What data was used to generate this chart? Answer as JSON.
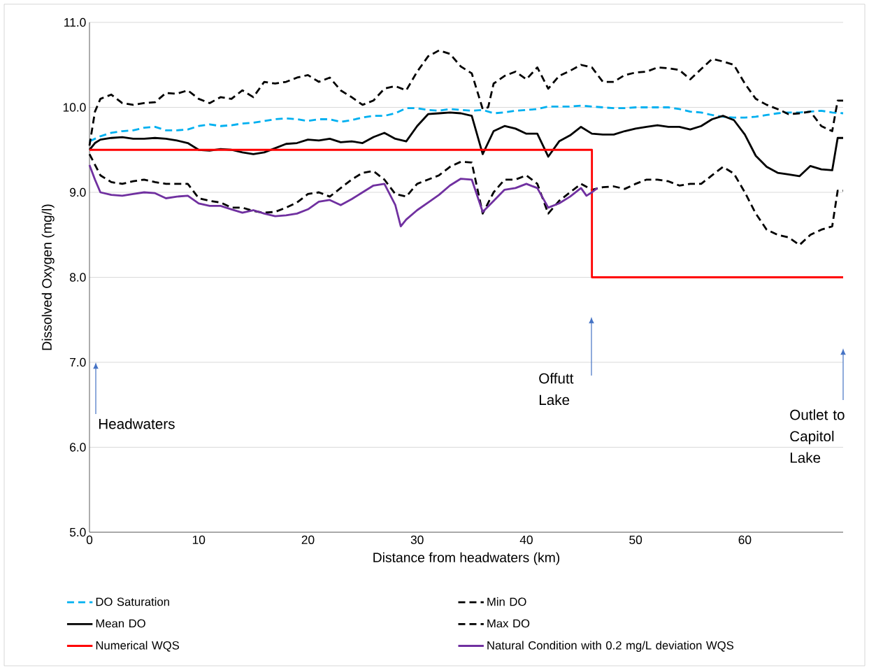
{
  "chart_data": {
    "type": "line",
    "xlabel": "Distance from headwaters (km)",
    "ylabel": "Dissolved Oxygen (mg/l)",
    "xlim": [
      0,
      69
    ],
    "ylim": [
      5,
      11
    ],
    "xticks": [
      0,
      10,
      20,
      30,
      40,
      50,
      60
    ],
    "yticks": [
      {
        "value": 5,
        "label": "5.0"
      },
      {
        "value": 6,
        "label": "6.0"
      },
      {
        "value": 7,
        "label": "7.0"
      },
      {
        "value": 8,
        "label": "8.0"
      },
      {
        "value": 9,
        "label": "9.0"
      },
      {
        "value": 10,
        "label": "10.0"
      },
      {
        "value": 11,
        "label": "11.0"
      }
    ],
    "grid": "y",
    "legend": "bottom",
    "marker": "none",
    "annotations": [
      "Headwaters",
      "Offutt Lake",
      "Outlet to Capitol Lake"
    ],
    "series": [
      {
        "name": "DO Saturation",
        "color": "#00b0f0",
        "line_style": "dashed",
        "x": [
          0,
          1,
          2,
          3,
          4,
          5,
          6,
          7,
          8,
          9,
          10,
          11,
          12,
          13,
          14,
          15,
          16,
          17,
          18,
          19,
          20,
          21,
          22,
          23,
          24,
          25,
          26,
          27,
          28,
          29,
          30,
          31,
          32,
          33,
          34,
          35,
          36,
          37,
          38,
          39,
          40,
          41,
          42,
          43,
          44,
          45,
          46,
          47,
          48,
          49,
          50,
          51,
          52,
          53,
          54,
          55,
          56,
          57,
          58,
          59,
          60,
          61,
          62,
          63,
          64,
          65,
          66,
          67,
          68,
          69
        ],
        "values": [
          9.6,
          9.66,
          9.7,
          9.72,
          9.73,
          9.76,
          9.77,
          9.73,
          9.73,
          9.74,
          9.78,
          9.8,
          9.78,
          9.79,
          9.81,
          9.82,
          9.84,
          9.86,
          9.87,
          9.86,
          9.84,
          9.86,
          9.86,
          9.83,
          9.85,
          9.88,
          9.9,
          9.9,
          9.93,
          9.99,
          9.99,
          9.97,
          9.96,
          9.98,
          9.97,
          9.96,
          9.97,
          9.93,
          9.94,
          9.96,
          9.97,
          9.98,
          10.01,
          10.01,
          10.01,
          10.02,
          10.01,
          10.0,
          9.99,
          9.99,
          10.0,
          10.0,
          10.0,
          10.0,
          9.98,
          9.95,
          9.94,
          9.91,
          9.89,
          9.88,
          9.88,
          9.89,
          9.91,
          9.93,
          9.94,
          9.94,
          9.95,
          9.96,
          9.94,
          9.93
        ]
      },
      {
        "name": "Min DO",
        "color": "#000000",
        "line_style": "dashed",
        "x": [
          0,
          1,
          2,
          3,
          4,
          5,
          6,
          7,
          8,
          9,
          10,
          11,
          12,
          13,
          14,
          15,
          16,
          17,
          18,
          19,
          20,
          21,
          22,
          23,
          24,
          25,
          26,
          27,
          28,
          29,
          30,
          31,
          32,
          33,
          34,
          35,
          36,
          37,
          38,
          39,
          40,
          41,
          42,
          43,
          44,
          45,
          46,
          47,
          48,
          49,
          50,
          51,
          52,
          53,
          54,
          55,
          56,
          57,
          58,
          59,
          60,
          61,
          62,
          63,
          64,
          65,
          66,
          67,
          68,
          68.5,
          69
        ],
        "values": [
          9.45,
          9.2,
          9.12,
          9.1,
          9.13,
          9.15,
          9.12,
          9.1,
          9.1,
          9.1,
          8.93,
          8.9,
          8.88,
          8.82,
          8.82,
          8.78,
          8.76,
          8.77,
          8.82,
          8.88,
          8.98,
          9.0,
          8.95,
          9.05,
          9.15,
          9.23,
          9.25,
          9.15,
          8.98,
          8.95,
          9.1,
          9.15,
          9.2,
          9.3,
          9.36,
          9.35,
          8.75,
          9.0,
          9.15,
          9.15,
          9.2,
          9.1,
          8.75,
          8.9,
          9.0,
          9.1,
          9.03,
          9.06,
          9.07,
          9.04,
          9.1,
          9.15,
          9.15,
          9.13,
          9.08,
          9.1,
          9.1,
          9.2,
          9.3,
          9.22,
          9.0,
          8.75,
          8.56,
          8.5,
          8.47,
          8.38,
          8.5,
          8.56,
          8.6,
          9.02,
          9.02
        ]
      },
      {
        "name": "Mean DO",
        "color": "#000000",
        "line_style": "solid",
        "x": [
          0,
          0.5,
          1,
          2,
          3,
          4,
          5,
          6,
          7,
          8,
          9,
          10,
          11,
          12,
          13,
          14,
          15,
          16,
          17,
          18,
          19,
          20,
          21,
          22,
          23,
          24,
          25,
          26,
          27,
          28,
          29,
          30,
          31,
          32,
          33,
          34,
          35,
          36,
          37,
          38,
          39,
          40,
          41,
          42,
          43,
          44,
          45,
          46,
          47,
          48,
          49,
          50,
          51,
          52,
          53,
          54,
          55,
          56,
          57,
          58,
          59,
          60,
          61,
          62,
          63,
          64,
          65,
          66,
          67,
          68,
          68.5,
          69
        ],
        "values": [
          9.5,
          9.58,
          9.62,
          9.64,
          9.65,
          9.63,
          9.63,
          9.64,
          9.63,
          9.61,
          9.58,
          9.5,
          9.49,
          9.51,
          9.5,
          9.47,
          9.45,
          9.47,
          9.52,
          9.57,
          9.58,
          9.62,
          9.61,
          9.63,
          9.59,
          9.6,
          9.58,
          9.65,
          9.7,
          9.63,
          9.6,
          9.78,
          9.92,
          9.93,
          9.94,
          9.93,
          9.9,
          9.45,
          9.72,
          9.78,
          9.75,
          9.69,
          9.69,
          9.42,
          9.6,
          9.67,
          9.77,
          9.69,
          9.68,
          9.68,
          9.72,
          9.75,
          9.77,
          9.79,
          9.77,
          9.77,
          9.74,
          9.78,
          9.86,
          9.9,
          9.85,
          9.68,
          9.43,
          9.3,
          9.23,
          9.21,
          9.19,
          9.31,
          9.27,
          9.26,
          9.64,
          9.64
        ]
      },
      {
        "name": "Max DO",
        "color": "#000000",
        "line_style": "dashed",
        "x": [
          0,
          0.5,
          1,
          2,
          3,
          4,
          5,
          6,
          7,
          8,
          9,
          10,
          11,
          12,
          13,
          14,
          15,
          16,
          17,
          18,
          19,
          20,
          21,
          22,
          23,
          24,
          25,
          26,
          27,
          28,
          29,
          30,
          31,
          32,
          33,
          34,
          35,
          36,
          36.5,
          37,
          38,
          39,
          40,
          41,
          42,
          43,
          44,
          45,
          46,
          47,
          48,
          49,
          50,
          51,
          52,
          53,
          54,
          55,
          56,
          57,
          58,
          59,
          60,
          61,
          62,
          63,
          64,
          65,
          66,
          67,
          68,
          68.5,
          69
        ],
        "values": [
          9.55,
          9.95,
          10.1,
          10.15,
          10.05,
          10.03,
          10.05,
          10.06,
          10.17,
          10.16,
          10.2,
          10.1,
          10.05,
          10.12,
          10.1,
          10.2,
          10.12,
          10.3,
          10.28,
          10.3,
          10.35,
          10.38,
          10.3,
          10.35,
          10.2,
          10.12,
          10.03,
          10.08,
          10.22,
          10.25,
          10.2,
          10.42,
          10.6,
          10.67,
          10.63,
          10.48,
          10.4,
          9.98,
          10.0,
          10.28,
          10.37,
          10.42,
          10.33,
          10.47,
          10.22,
          10.37,
          10.43,
          10.5,
          10.47,
          10.3,
          10.3,
          10.38,
          10.41,
          10.42,
          10.47,
          10.46,
          10.44,
          10.33,
          10.45,
          10.57,
          10.54,
          10.5,
          10.28,
          10.1,
          10.03,
          9.98,
          9.92,
          9.93,
          9.95,
          9.78,
          9.72,
          10.08,
          10.08
        ]
      },
      {
        "name": "Numerical WQS",
        "color": "#ff0000",
        "line_style": "solid",
        "x": [
          0,
          46,
          46,
          69
        ],
        "values": [
          9.5,
          9.5,
          8.0,
          8.0
        ]
      },
      {
        "name": "Natural Condition with 0.2 mg/L deviation WQS",
        "color": "#7030a0",
        "line_style": "solid",
        "x": [
          0,
          0.5,
          1,
          2,
          3,
          4,
          5,
          6,
          7,
          8,
          9,
          10,
          11,
          12,
          13,
          14,
          15,
          16,
          17,
          18,
          19,
          20,
          21,
          22,
          23,
          24,
          25,
          26,
          27,
          28,
          28.5,
          29,
          30,
          31,
          32,
          33,
          34,
          35,
          36,
          37,
          38,
          39,
          40,
          41,
          42,
          43,
          44,
          45,
          45.5,
          46,
          46.5
        ],
        "values": [
          9.32,
          9.15,
          9.0,
          8.97,
          8.96,
          8.98,
          9.0,
          8.99,
          8.93,
          8.95,
          8.96,
          8.87,
          8.84,
          8.84,
          8.8,
          8.76,
          8.79,
          8.75,
          8.72,
          8.73,
          8.75,
          8.8,
          8.89,
          8.91,
          8.85,
          8.92,
          9.0,
          9.08,
          9.1,
          8.85,
          8.6,
          8.68,
          8.79,
          8.88,
          8.97,
          9.08,
          9.16,
          9.15,
          8.77,
          8.9,
          9.03,
          9.05,
          9.1,
          9.05,
          8.82,
          8.87,
          8.95,
          9.05,
          8.96,
          9.0,
          9.05
        ]
      }
    ]
  }
}
